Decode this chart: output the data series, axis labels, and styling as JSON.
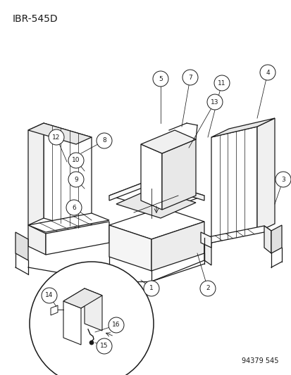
{
  "title": "IBR-545D",
  "footer": "94379 545",
  "bg_color": "#ffffff",
  "line_color": "#1a1a1a",
  "figsize": [
    4.14,
    5.33
  ],
  "dpi": 100
}
